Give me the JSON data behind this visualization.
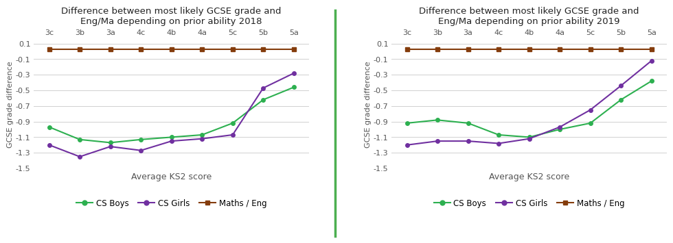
{
  "categories": [
    "3c",
    "3b",
    "3a",
    "4c",
    "4b",
    "4a",
    "5c",
    "5b",
    "5a"
  ],
  "chart2018": {
    "title": "Difference between most likely GCSE grade and\nEng/Ma depending on prior ability 2018",
    "cs_boys": [
      -0.97,
      -1.13,
      -1.17,
      -1.13,
      -1.1,
      -1.07,
      -0.92,
      -0.62,
      -0.46
    ],
    "cs_girls": [
      -1.2,
      -1.35,
      -1.22,
      -1.27,
      -1.15,
      -1.12,
      -1.07,
      -0.47,
      -0.28
    ],
    "maths_eng": [
      0.03,
      0.03,
      0.03,
      0.03,
      0.03,
      0.03,
      0.03,
      0.03,
      0.03
    ]
  },
  "chart2019": {
    "title": "Difference between most likely GCSE grade and\nEng/Ma depending on prior ability 2019",
    "cs_boys": [
      -0.92,
      -0.88,
      -0.92,
      -1.07,
      -1.1,
      -1.0,
      -0.92,
      -0.62,
      -0.38
    ],
    "cs_girls": [
      -1.2,
      -1.15,
      -1.15,
      -1.18,
      -1.12,
      -0.97,
      -0.75,
      -0.44,
      -0.12
    ],
    "maths_eng": [
      0.03,
      0.03,
      0.03,
      0.03,
      0.03,
      0.03,
      0.03,
      0.03,
      0.03
    ]
  },
  "ylim": [
    -1.5,
    0.15
  ],
  "yticks": [
    0.1,
    -0.1,
    -0.3,
    -0.5,
    -0.7,
    -0.9,
    -1.1,
    -1.3,
    -1.5
  ],
  "ytick_labels": [
    "0.1",
    "-0.1",
    "-0.3",
    "-0.5",
    "-0.7",
    "-0.9",
    "-1.1",
    "-1.3",
    "-1.5"
  ],
  "xlabel": "Average KS2 score",
  "ylabel": "GCSE grade difference",
  "color_boys": "#2db050",
  "color_girls": "#7030a0",
  "color_maths": "#843c0c",
  "legend_labels": [
    "CS Boys",
    "CS Girls",
    "Maths / Eng"
  ],
  "background_color": "#ffffff",
  "divider_color": "#4caf50"
}
